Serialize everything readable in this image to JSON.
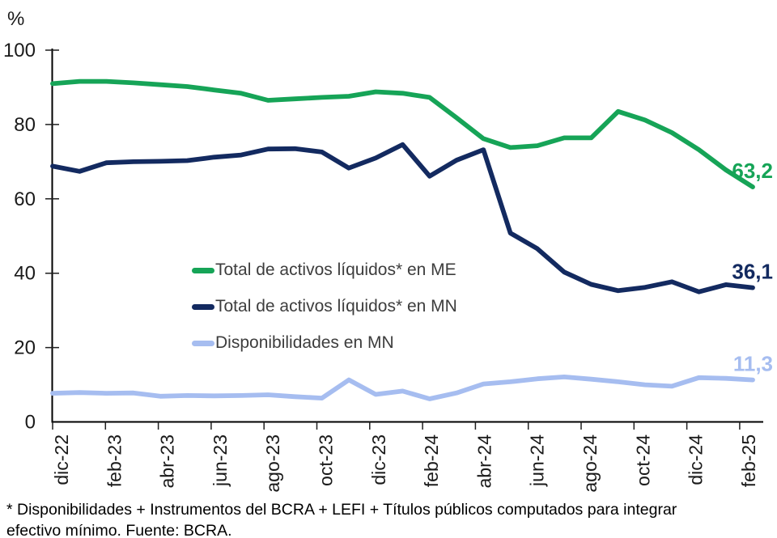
{
  "chart_data": {
    "type": "line",
    "title": "",
    "y_axis": {
      "label": "%",
      "min": 0,
      "max": 100,
      "ticks": [
        0,
        20,
        40,
        60,
        80,
        100
      ]
    },
    "x_tick_labels": [
      "dic-22",
      "feb-23",
      "abr-23",
      "jun-23",
      "ago-23",
      "oct-23",
      "dic-23",
      "feb-24",
      "abr-24",
      "jun-24",
      "ago-24",
      "oct-24",
      "dic-24",
      "feb-25"
    ],
    "categories": [
      "dic-22",
      "ene-23",
      "feb-23",
      "mar-23",
      "abr-23",
      "may-23",
      "jun-23",
      "jul-23",
      "ago-23",
      "sep-23",
      "oct-23",
      "nov-23",
      "dic-23",
      "ene-24",
      "feb-24",
      "mar-24",
      "abr-24",
      "may-24",
      "jun-24",
      "jul-24",
      "ago-24",
      "sep-24",
      "oct-24",
      "nov-24",
      "dic-24",
      "ene-25",
      "feb-25"
    ],
    "grid": "off",
    "legend_position": "inside-center-left",
    "series": [
      {
        "key": "me",
        "name": "Total de activos líquidos* en ME",
        "color": "#16a457",
        "end_label": "63,2",
        "values": [
          91.0,
          91.6,
          91.6,
          91.2,
          90.7,
          90.2,
          89.3,
          88.4,
          86.5,
          86.9,
          87.3,
          87.6,
          88.8,
          88.4,
          87.3,
          81.8,
          76.2,
          73.8,
          74.3,
          76.4,
          76.4,
          83.5,
          81.2,
          77.8,
          73.2,
          67.8,
          63.2
        ]
      },
      {
        "key": "mn",
        "name": "Total de activos líquidos* en MN",
        "color": "#132a60",
        "end_label": "36,1",
        "values": [
          68.8,
          67.4,
          69.7,
          70.0,
          70.1,
          70.3,
          71.2,
          71.8,
          73.4,
          73.5,
          72.6,
          68.3,
          71.0,
          74.6,
          66.1,
          70.4,
          73.2,
          50.8,
          46.6,
          40.3,
          37.0,
          35.3,
          36.2,
          37.7,
          35.0,
          36.9,
          36.1
        ]
      },
      {
        "key": "disp",
        "name": "Disponibilidades en MN",
        "color": "#a6bdf0",
        "end_label": "11,3",
        "values": [
          7.7,
          7.9,
          7.7,
          7.8,
          6.9,
          7.1,
          7.0,
          7.1,
          7.3,
          6.8,
          6.4,
          11.3,
          7.4,
          8.3,
          6.2,
          7.8,
          10.2,
          10.8,
          11.6,
          12.1,
          11.5,
          10.8,
          10.0,
          9.6,
          11.9,
          11.7,
          11.3
        ]
      }
    ]
  },
  "footnote": {
    "lines": [
      "* Disponibilidades + Instrumentos del BCRA + LEFI + Títulos públicos computados para integrar",
      "efectivo mínimo. Fuente: BCRA."
    ]
  }
}
